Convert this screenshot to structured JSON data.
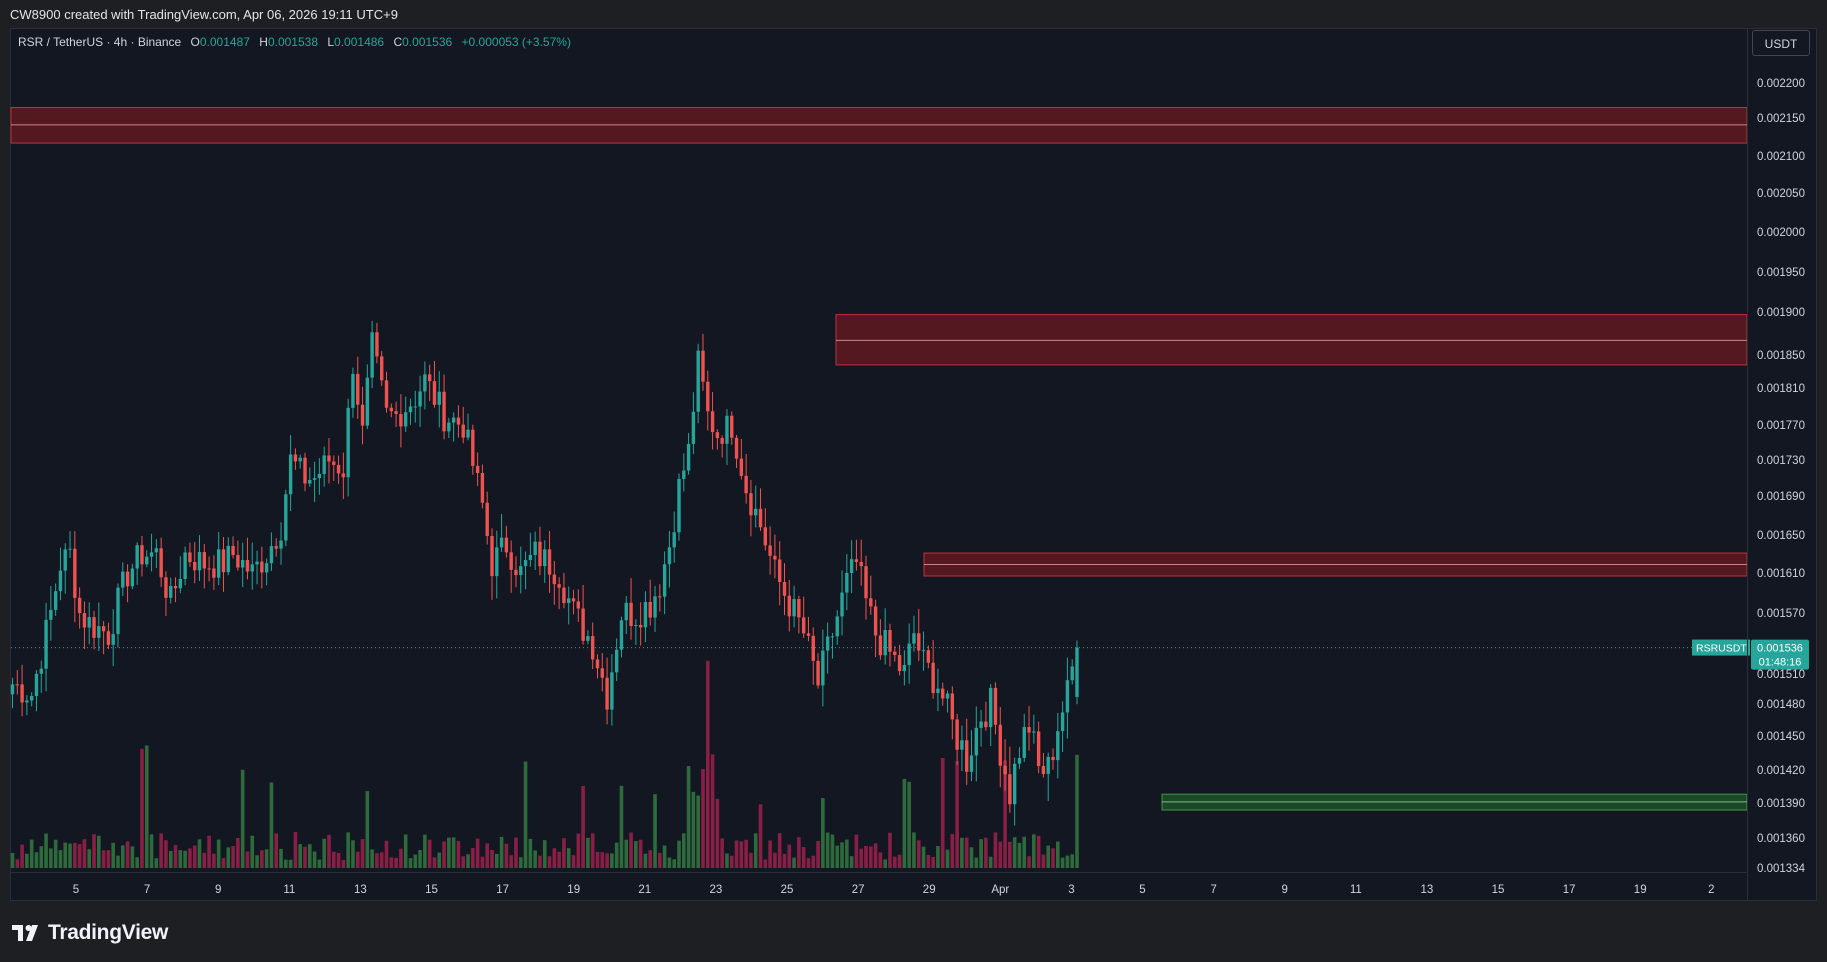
{
  "header": {
    "attribution": "CW8900 created with TradingView.com, Apr 06, 2026 19:11 UTC+9"
  },
  "legend": {
    "symbol": "RSR / TetherUS · 4h · Binance",
    "o_label": "O",
    "o": "0.001487",
    "h_label": "H",
    "h": "0.001538",
    "l_label": "L",
    "l": "0.001486",
    "c_label": "C",
    "c": "0.001536",
    "change": "+0.000053 (+3.57%)"
  },
  "currency": "USDT",
  "price_tag": {
    "label": "RSRUSDT",
    "price": "0.001536",
    "countdown": "01:48:16"
  },
  "brand": {
    "name": "TradingView"
  },
  "colors": {
    "up": "#26a69a",
    "down": "#ef5350",
    "vol_up": "#2e6b3c",
    "vol_down": "#8a1f45",
    "zone_red": "#6b1a22",
    "zone_green": "#1f5a2a",
    "bg": "#131722"
  },
  "chart_data": {
    "type": "candlestick",
    "timeframe": "4h",
    "y_ticks": [
      "0.002200",
      "0.002150",
      "0.002100",
      "0.002050",
      "0.002000",
      "0.001950",
      "0.001900",
      "0.001850",
      "0.001810",
      "0.001770",
      "0.001730",
      "0.001690",
      "0.001650",
      "0.001610",
      "0.001570",
      "0.001510",
      "0.001480",
      "0.001450",
      "0.001420",
      "0.001390",
      "0.001360",
      "0.001334"
    ],
    "x_ticks": [
      "5",
      "7",
      "9",
      "11",
      "13",
      "15",
      "17",
      "19",
      "21",
      "23",
      "25",
      "27",
      "29",
      "Apr",
      "3",
      "5",
      "7",
      "9",
      "11",
      "13",
      "15",
      "17",
      "19",
      "2"
    ],
    "last_price": 0.001536,
    "zones": [
      {
        "kind": "resistance",
        "from_label": "start",
        "low": 0.002117,
        "high": 0.002165,
        "mid": 0.002141
      },
      {
        "kind": "resistance",
        "from_label": "26",
        "low": 0.001838,
        "high": 0.001897,
        "mid": 0.001867
      },
      {
        "kind": "resistance",
        "from_label": "28",
        "low": 0.001607,
        "high": 0.001631,
        "mid": 0.001619
      },
      {
        "kind": "support",
        "from_label": "4",
        "low": 0.001384,
        "high": 0.001398,
        "mid": 0.001391
      }
    ],
    "anchors": [
      [
        0,
        0.0015
      ],
      [
        4,
        0.00149
      ],
      [
        8,
        0.00157
      ],
      [
        10,
        0.00162
      ],
      [
        12,
        0.00163
      ],
      [
        14,
        0.00157
      ],
      [
        16,
        0.00156
      ],
      [
        20,
        0.00155
      ],
      [
        24,
        0.00161
      ],
      [
        27,
        0.00163
      ],
      [
        30,
        0.00163
      ],
      [
        33,
        0.00158
      ],
      [
        36,
        0.00163
      ],
      [
        40,
        0.00162
      ],
      [
        44,
        0.00162
      ],
      [
        46,
        0.00163
      ],
      [
        50,
        0.00161
      ],
      [
        53,
        0.00163
      ],
      [
        56,
        0.00166
      ],
      [
        58,
        0.00173
      ],
      [
        61,
        0.00171
      ],
      [
        63,
        0.00171
      ],
      [
        66,
        0.00173
      ],
      [
        69,
        0.00172
      ],
      [
        71,
        0.00184
      ],
      [
        73,
        0.00176
      ],
      [
        75,
        0.00186
      ],
      [
        78,
        0.00178
      ],
      [
        80,
        0.00178
      ],
      [
        84,
        0.0018
      ],
      [
        86,
        0.00182
      ],
      [
        90,
        0.00178
      ],
      [
        94,
        0.00177
      ],
      [
        98,
        0.00168
      ],
      [
        100,
        0.00162
      ],
      [
        103,
        0.00164
      ],
      [
        106,
        0.00161
      ],
      [
        109,
        0.00163
      ],
      [
        112,
        0.00162
      ],
      [
        114,
        0.00161
      ],
      [
        117,
        0.00157
      ],
      [
        121,
        0.00154
      ],
      [
        124,
        0.00149
      ],
      [
        127,
        0.00157
      ],
      [
        130,
        0.00157
      ],
      [
        133,
        0.00158
      ],
      [
        135,
        0.0016
      ],
      [
        137,
        0.00164
      ],
      [
        139,
        0.0017
      ],
      [
        141,
        0.00174
      ],
      [
        143,
        0.00184
      ],
      [
        145,
        0.00178
      ],
      [
        147,
        0.00176
      ],
      [
        150,
        0.00177
      ],
      [
        153,
        0.0017
      ],
      [
        156,
        0.00166
      ],
      [
        159,
        0.00161
      ],
      [
        162,
        0.00158
      ],
      [
        165,
        0.00155
      ],
      [
        168,
        0.0015
      ],
      [
        171,
        0.00155
      ],
      [
        174,
        0.0016
      ],
      [
        176,
        0.00162
      ],
      [
        178,
        0.00158
      ],
      [
        180,
        0.00155
      ],
      [
        183,
        0.00153
      ],
      [
        186,
        0.00151
      ],
      [
        188,
        0.00155
      ],
      [
        190,
        0.00152
      ],
      [
        193,
        0.0015
      ],
      [
        196,
        0.00146
      ],
      [
        199,
        0.00143
      ],
      [
        202,
        0.00147
      ],
      [
        204,
        0.00148
      ],
      [
        206,
        0.00144
      ],
      [
        208,
        0.0014
      ],
      [
        210,
        0.00144
      ],
      [
        212,
        0.00146
      ],
      [
        214,
        0.00142
      ],
      [
        216,
        0.00142
      ],
      [
        218,
        0.00146
      ],
      [
        220,
        0.00149
      ],
      [
        222,
        0.00154
      ]
    ]
  }
}
